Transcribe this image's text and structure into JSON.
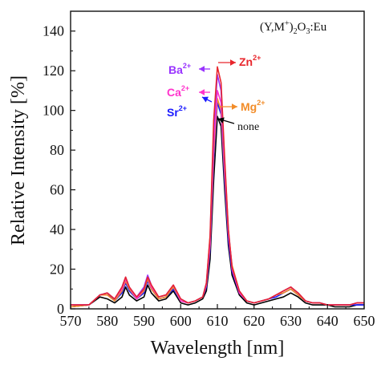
{
  "chart_data": {
    "type": "line",
    "xlabel": "Wavelength [nm]",
    "ylabel": "Relative Intensity [%]",
    "xlim": [
      570,
      650
    ],
    "ylim": [
      0,
      150
    ],
    "x_ticks": [
      570,
      580,
      590,
      600,
      610,
      620,
      630,
      640,
      650
    ],
    "y_ticks": [
      0,
      20,
      40,
      60,
      80,
      100,
      120,
      140
    ],
    "grid": false,
    "annotation_formula": {
      "base": "(Y,M",
      "sup": "+",
      "mid": ")",
      "sub": "2",
      "tail": "O",
      "sub2": "3",
      "end": ":Eu"
    },
    "ion_labels": [
      {
        "ion": "Ba",
        "charge": "2+",
        "color": "#9933ff",
        "arrow": "left"
      },
      {
        "ion": "Zn",
        "charge": "2+",
        "color": "#e8262c",
        "arrow": "right"
      },
      {
        "ion": "Ca",
        "charge": "2+",
        "color": "#ff33cc",
        "arrow": "left"
      },
      {
        "ion": "Mg",
        "charge": "2+",
        "color": "#f28c28",
        "arrow": "right"
      },
      {
        "ion": "Sr",
        "charge": "2+",
        "color": "#1a1aff",
        "arrow": "left"
      },
      {
        "ion": "none",
        "charge": "",
        "color": "#000000",
        "arrow": "left"
      }
    ],
    "series": [
      {
        "name": "none",
        "color": "#000000",
        "x": [
          570,
          575,
          578,
          580,
          582,
          584,
          585,
          586,
          588,
          590,
          591,
          592,
          594,
          596,
          598,
          600,
          602,
          604,
          606,
          607,
          608,
          609,
          610,
          611,
          612,
          613,
          614,
          616,
          618,
          620,
          622,
          624,
          626,
          628,
          630,
          632,
          634,
          636,
          638,
          640,
          642,
          644,
          646,
          648,
          650
        ],
        "y": [
          1,
          2,
          6,
          5,
          3,
          6,
          11,
          7,
          4,
          6,
          12,
          8,
          4,
          5,
          9,
          3,
          2,
          3,
          5,
          9,
          25,
          65,
          97,
          92,
          60,
          32,
          17,
          7,
          3,
          2,
          3,
          4,
          5,
          6,
          8,
          6,
          3,
          2,
          2,
          2,
          1,
          1,
          1,
          2,
          2
        ]
      },
      {
        "name": "Sr2+",
        "color": "#1a1aff",
        "x": [
          570,
          575,
          578,
          580,
          582,
          584,
          585,
          586,
          588,
          590,
          591,
          592,
          594,
          596,
          598,
          600,
          602,
          604,
          606,
          607,
          608,
          609,
          610,
          611,
          612,
          613,
          614,
          616,
          618,
          620,
          622,
          624,
          626,
          628,
          630,
          632,
          634,
          636,
          638,
          640,
          642,
          644,
          646,
          648,
          650
        ],
        "y": [
          2,
          2,
          7,
          8,
          4,
          8,
          13,
          9,
          5,
          8,
          14,
          10,
          5,
          6,
          10,
          4,
          3,
          4,
          6,
          11,
          30,
          75,
          104,
          98,
          65,
          35,
          19,
          8,
          4,
          3,
          4,
          5,
          6,
          8,
          10,
          7,
          4,
          3,
          3,
          2,
          2,
          2,
          2,
          2,
          2
        ]
      },
      {
        "name": "Mg2+",
        "color": "#f28c28",
        "x": [
          570,
          575,
          578,
          580,
          582,
          584,
          585,
          586,
          588,
          590,
          591,
          592,
          594,
          596,
          598,
          600,
          602,
          604,
          606,
          607,
          608,
          609,
          610,
          611,
          612,
          613,
          614,
          616,
          618,
          620,
          622,
          624,
          626,
          628,
          630,
          632,
          634,
          636,
          638,
          640,
          642,
          644,
          646,
          648,
          650
        ],
        "y": [
          1,
          2,
          7,
          7,
          4,
          9,
          14,
          10,
          5,
          9,
          15,
          10,
          5,
          6,
          11,
          4,
          3,
          4,
          6,
          12,
          32,
          78,
          106,
          100,
          68,
          38,
          22,
          9,
          4,
          3,
          4,
          5,
          7,
          8,
          10,
          7,
          4,
          3,
          3,
          2,
          2,
          2,
          2,
          3,
          3
        ]
      },
      {
        "name": "Ca2+",
        "color": "#ff33cc",
        "x": [
          570,
          575,
          578,
          580,
          582,
          584,
          585,
          586,
          588,
          590,
          591,
          592,
          594,
          596,
          598,
          600,
          602,
          604,
          606,
          607,
          608,
          609,
          610,
          611,
          612,
          613,
          614,
          616,
          618,
          620,
          622,
          624,
          626,
          628,
          630,
          632,
          634,
          636,
          638,
          640,
          642,
          644,
          646,
          648,
          650
        ],
        "y": [
          2,
          2,
          7,
          8,
          5,
          10,
          15,
          11,
          5,
          10,
          16,
          11,
          6,
          7,
          12,
          4,
          3,
          4,
          6,
          12,
          33,
          82,
          110,
          104,
          70,
          38,
          20,
          8,
          4,
          3,
          4,
          5,
          7,
          9,
          11,
          8,
          4,
          3,
          3,
          2,
          2,
          2,
          2,
          3,
          3
        ]
      },
      {
        "name": "Ba2+",
        "color": "#9933ff",
        "x": [
          570,
          575,
          578,
          580,
          582,
          584,
          585,
          586,
          588,
          590,
          591,
          592,
          594,
          596,
          598,
          600,
          602,
          604,
          606,
          607,
          608,
          609,
          610,
          611,
          612,
          613,
          614,
          616,
          618,
          620,
          622,
          624,
          626,
          628,
          630,
          632,
          634,
          636,
          638,
          640,
          642,
          644,
          646,
          648,
          650
        ],
        "y": [
          2,
          2,
          7,
          8,
          5,
          11,
          16,
          11,
          6,
          11,
          17,
          12,
          6,
          7,
          12,
          5,
          3,
          4,
          6,
          13,
          36,
          90,
          118,
          110,
          74,
          40,
          21,
          9,
          4,
          3,
          4,
          5,
          7,
          9,
          11,
          8,
          4,
          3,
          3,
          2,
          2,
          2,
          2,
          3,
          3
        ]
      },
      {
        "name": "Zn2+",
        "color": "#e8262c",
        "x": [
          570,
          575,
          578,
          580,
          582,
          584,
          585,
          586,
          588,
          590,
          591,
          592,
          594,
          596,
          598,
          600,
          602,
          604,
          606,
          607,
          608,
          609,
          610,
          611,
          612,
          613,
          614,
          616,
          618,
          620,
          622,
          624,
          626,
          628,
          630,
          632,
          634,
          636,
          638,
          640,
          642,
          644,
          646,
          648,
          650
        ],
        "y": [
          2,
          2,
          7,
          8,
          5,
          11,
          16,
          11,
          6,
          10,
          16,
          12,
          6,
          7,
          12,
          5,
          3,
          4,
          6,
          13,
          37,
          95,
          122,
          114,
          76,
          40,
          21,
          9,
          4,
          3,
          4,
          5,
          7,
          9,
          11,
          8,
          4,
          3,
          3,
          2,
          2,
          2,
          2,
          3,
          3
        ]
      }
    ]
  }
}
